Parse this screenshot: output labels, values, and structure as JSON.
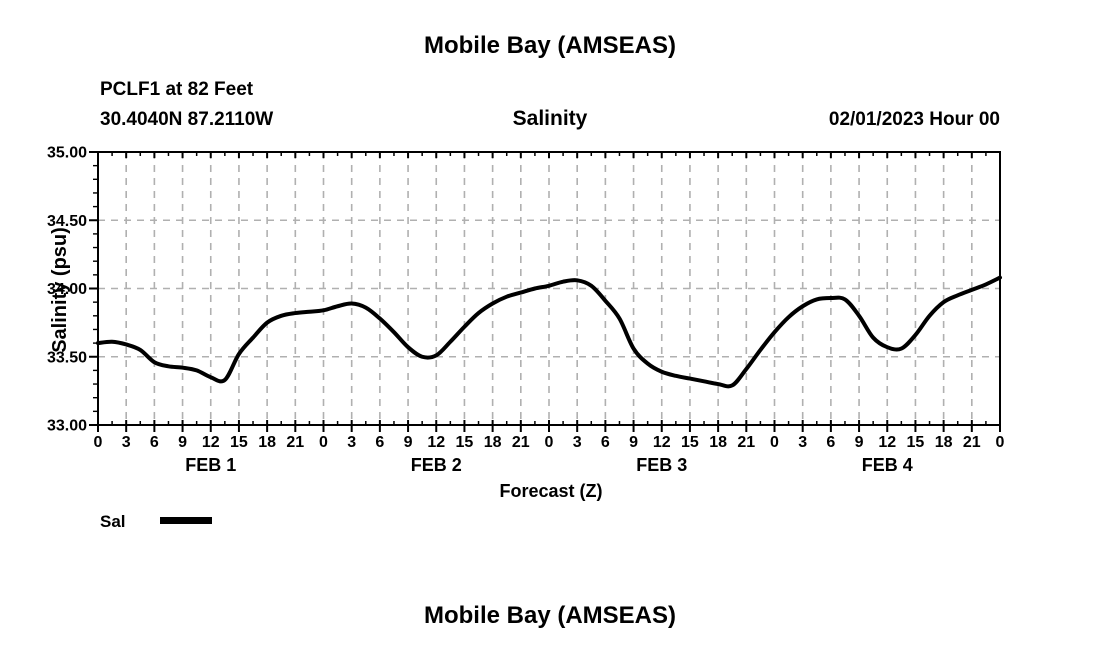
{
  "footer": {
    "next_title": "Mobile Bay (AMSEAS)"
  },
  "chart_data": {
    "type": "line",
    "title": "Mobile Bay (AMSEAS)",
    "subtitle": "Salinity",
    "station": "PCLF1 at 82 Feet",
    "location": "30.4040N  87.2110W",
    "run_time": "02/01/2023 Hour 00",
    "xlabel": "Forecast (Z)",
    "ylabel": "Salinity (psu)",
    "ylim": [
      33.0,
      35.0
    ],
    "xlim_hours": [
      0,
      96
    ],
    "grid": true,
    "grid_color": "#b0b0b0",
    "line_color": "#000000",
    "y_major_ticks": [
      {
        "value": 33.0,
        "label": "33.00"
      },
      {
        "value": 33.5,
        "label": "33.50"
      },
      {
        "value": 34.0,
        "label": "34.00"
      },
      {
        "value": 34.5,
        "label": "34.50"
      },
      {
        "value": 35.0,
        "label": "35.00"
      }
    ],
    "y_minor_step": 0.1,
    "x_major_step_hours": 3,
    "x_minor_step_hours": 1.5,
    "x_tick_labels": [
      "0",
      "3",
      "6",
      "9",
      "12",
      "15",
      "18",
      "21",
      "0",
      "3",
      "6",
      "9",
      "12",
      "15",
      "18",
      "21",
      "0",
      "3",
      "6",
      "9",
      "12",
      "15",
      "18",
      "21",
      "0",
      "3",
      "6",
      "9",
      "12",
      "15",
      "18",
      "21",
      "0"
    ],
    "day_labels": [
      {
        "label": "FEB 1",
        "center_hour": 12
      },
      {
        "label": "FEB 2",
        "center_hour": 36
      },
      {
        "label": "FEB 3",
        "center_hour": 60
      },
      {
        "label": "FEB 4",
        "center_hour": 84
      }
    ],
    "legend": {
      "label": "Sal",
      "position": "bottom-left"
    },
    "series": [
      {
        "name": "Sal",
        "x_start_hour": 0,
        "x_step_hours": 1.5,
        "values": [
          33.6,
          33.61,
          33.59,
          33.55,
          33.46,
          33.43,
          33.42,
          33.4,
          33.35,
          33.33,
          33.52,
          33.64,
          33.75,
          33.8,
          33.82,
          33.83,
          33.84,
          33.87,
          33.89,
          33.86,
          33.78,
          33.68,
          33.57,
          33.5,
          33.51,
          33.61,
          33.72,
          33.82,
          33.89,
          33.94,
          33.97,
          34.0,
          34.02,
          34.05,
          34.06,
          34.02,
          33.91,
          33.78,
          33.56,
          33.45,
          33.39,
          33.36,
          33.34,
          33.32,
          33.3,
          33.29,
          33.41,
          33.55,
          33.68,
          33.79,
          33.87,
          33.92,
          33.93,
          33.92,
          33.8,
          33.64,
          33.57,
          33.56,
          33.66,
          33.8,
          33.9,
          33.95,
          33.99,
          34.03,
          34.08
        ]
      }
    ]
  }
}
